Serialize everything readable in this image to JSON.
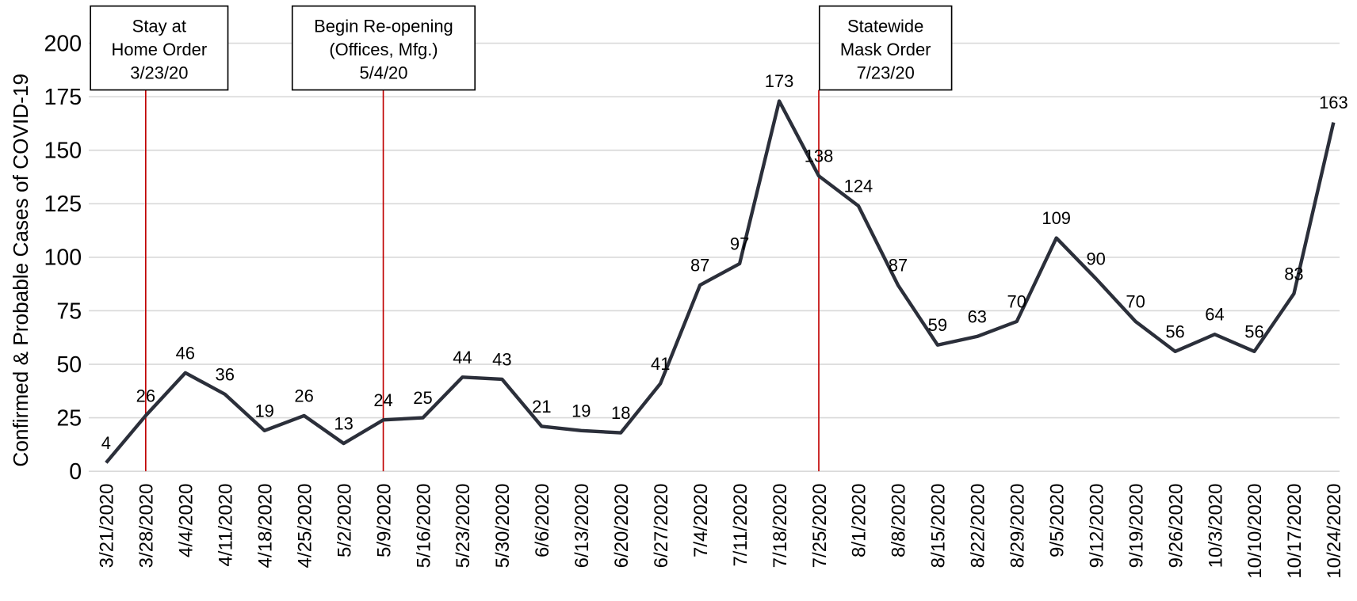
{
  "chart_data": {
    "type": "line",
    "y_label": "Confirmed & Probable Cases of COVID-19",
    "categories": [
      "3/21/2020",
      "3/28/2020",
      "4/4/2020",
      "4/11/2020",
      "4/18/2020",
      "4/25/2020",
      "5/2/2020",
      "5/9/2020",
      "5/16/2020",
      "5/23/2020",
      "5/30/2020",
      "6/6/2020",
      "6/13/2020",
      "6/20/2020",
      "6/27/2020",
      "7/4/2020",
      "7/11/2020",
      "7/18/2020",
      "7/25/2020",
      "8/1/2020",
      "8/8/2020",
      "8/15/2020",
      "8/22/2020",
      "8/29/2020",
      "9/5/2020",
      "9/12/2020",
      "9/19/2020",
      "9/26/2020",
      "10/3/2020",
      "10/10/2020",
      "10/17/2020",
      "10/24/2020"
    ],
    "series": [
      {
        "color": "#2b2f3a",
        "values": [
          4,
          26,
          46,
          36,
          19,
          26,
          13,
          24,
          25,
          44,
          43,
          21,
          19,
          18,
          41,
          87,
          97,
          173,
          138,
          124,
          87,
          59,
          63,
          70,
          109,
          90,
          70,
          56,
          64,
          56,
          83,
          163
        ]
      }
    ],
    "ylim": [
      0,
      200
    ],
    "yticks": [
      0,
      25,
      50,
      75,
      100,
      125,
      150,
      175,
      200
    ],
    "grid": true,
    "annotations": [
      {
        "x": "3/28/2020",
        "color": "#c00000",
        "lines": [
          "Stay at",
          "Home Order",
          "3/23/20"
        ]
      },
      {
        "x": "5/9/2020",
        "color": "#c00000",
        "lines": [
          "Begin Re-opening",
          "(Offices, Mfg.)",
          "5/4/20"
        ]
      },
      {
        "x": "7/25/2020",
        "color": "#c00000",
        "lines": [
          "Statewide",
          "Mask Order",
          "7/23/20"
        ]
      }
    ]
  }
}
